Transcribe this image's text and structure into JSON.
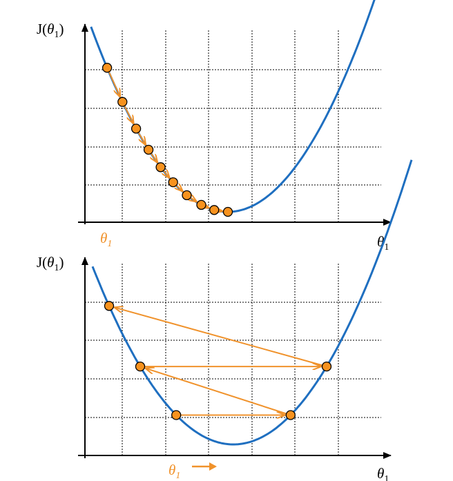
{
  "colors": {
    "curve": "#1f6fc0",
    "steps": "#f0922b",
    "point_fill": "#f7921e",
    "axis": "#000000",
    "grid": "#000000"
  },
  "panels": [
    {
      "id": "small-learning-rate",
      "y_axis_label": {
        "prefix": "J(",
        "symbol": "θ",
        "sub": "1",
        "suffix": ")"
      },
      "x_axis_label": {
        "symbol": "θ",
        "sub": "1"
      },
      "start_label": {
        "symbol": "θ",
        "sub": "1",
        "arrow": false
      },
      "theta_steps": [
        -3.0,
        -2.62,
        -2.28,
        -1.97,
        -1.67,
        -1.36,
        -1.02,
        -0.66,
        -0.34,
        0.0
      ],
      "step_pattern": "sequential"
    },
    {
      "id": "large-learning-rate",
      "y_axis_label": {
        "prefix": "J(",
        "symbol": "θ",
        "sub": "1",
        "suffix": ")"
      },
      "x_axis_label": {
        "symbol": "θ",
        "sub": "1"
      },
      "start_label": {
        "symbol": "θ",
        "sub": "1",
        "arrow": true
      },
      "theta_steps": [
        -1.38,
        1.38,
        -2.25,
        2.25,
        -3.0
      ],
      "step_pattern": "oscillating"
    }
  ],
  "function": {
    "form": "quadratic",
    "theta_min": 0.0,
    "J_min": 0.3,
    "theta_range": [
      -3.4,
      4.3
    ]
  }
}
